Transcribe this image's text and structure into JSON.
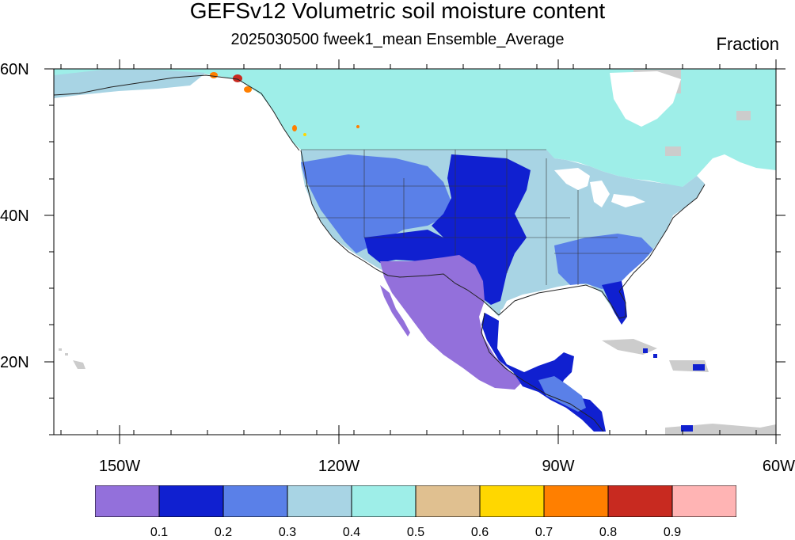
{
  "title": "GEFSv12 Volumetric soil moisture content",
  "subtitle": "2025030500 fweek1_mean Ensemble_Average",
  "units": "Fraction",
  "lat_labels": [
    "60N",
    "40N",
    "20N"
  ],
  "lon_labels": [
    "150W",
    "120W",
    "90W",
    "60W"
  ],
  "colorbar": {
    "colors": [
      "#9370db",
      "#1020d0",
      "#5a80e8",
      "#a8d4e4",
      "#9eeee8",
      "#e0c090",
      "#ffd700",
      "#ff7f00",
      "#c82a20",
      "#ffb4b4"
    ],
    "labels": [
      "0.1",
      "0.2",
      "0.3",
      "0.4",
      "0.5",
      "0.6",
      "0.7",
      "0.8",
      "0.9"
    ]
  },
  "map": {
    "missing_color": "#cccccc",
    "coast_color": "#222222"
  }
}
